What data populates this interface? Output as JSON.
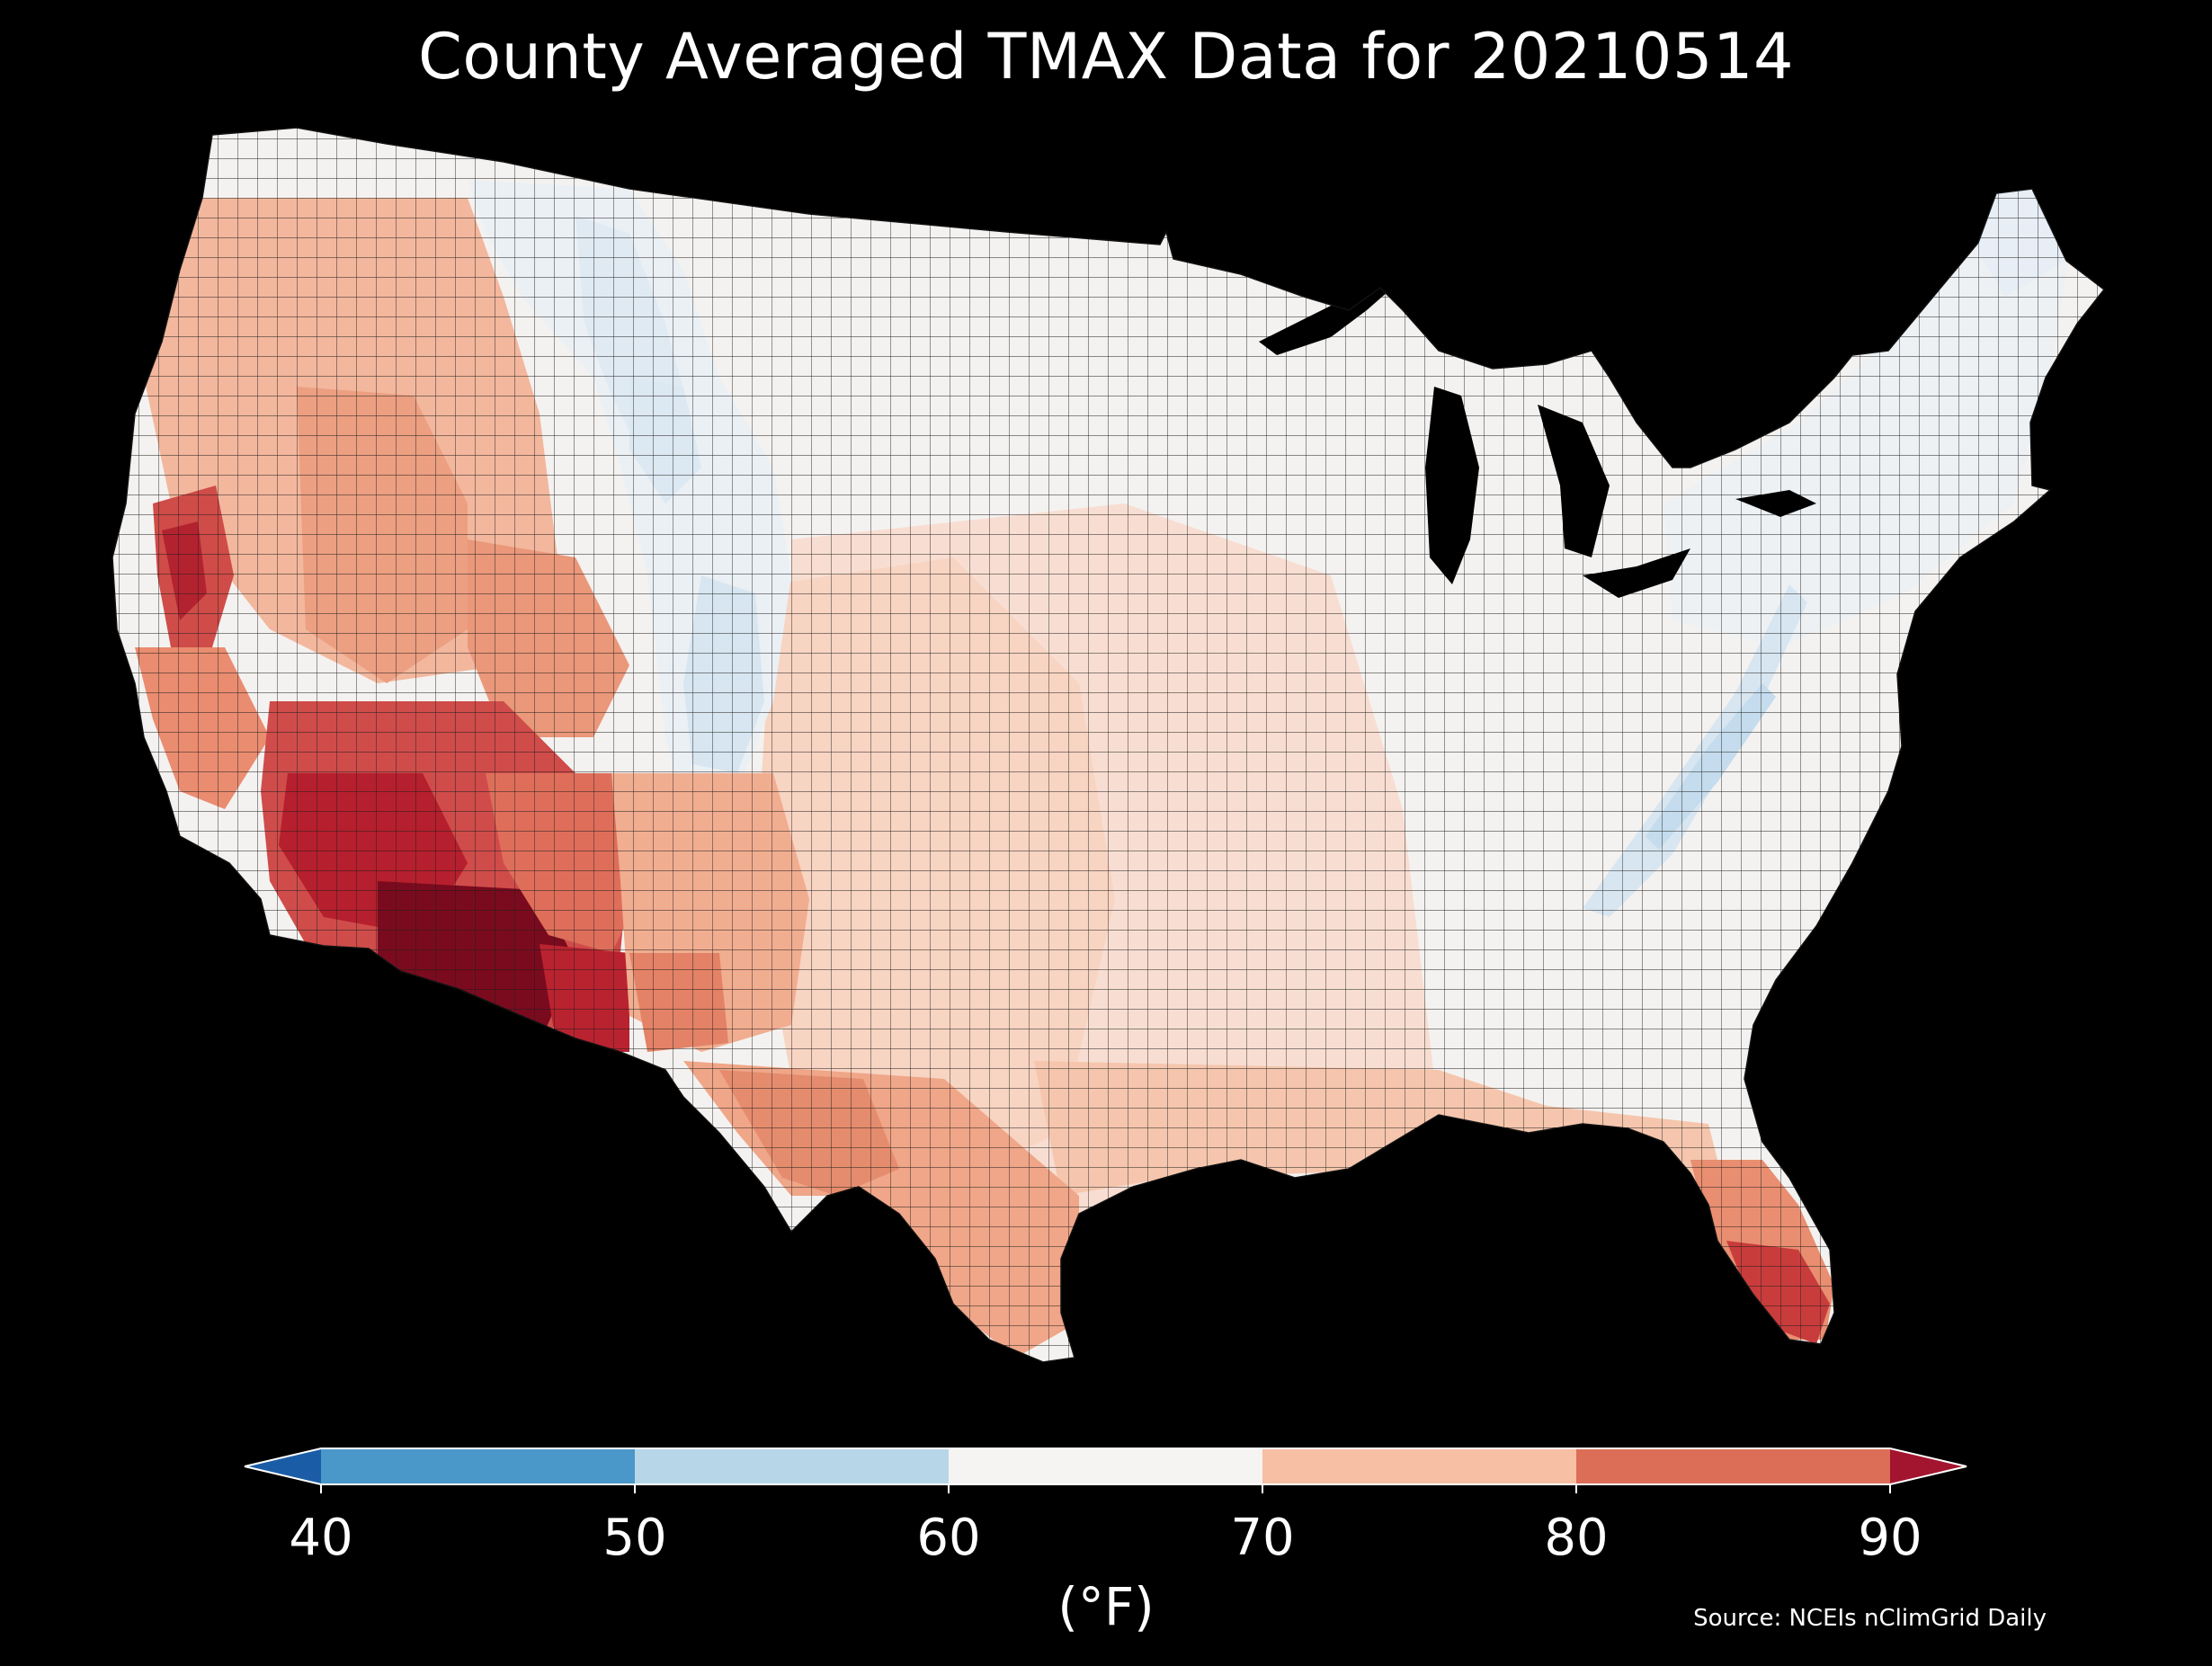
{
  "title": "County Averaged TMAX Data for 20210514",
  "colorbar": {
    "ticks": [
      "40",
      "50",
      "60",
      "70",
      "80",
      "90"
    ],
    "unit_label": "(°F)",
    "bins": [
      {
        "from": 40,
        "to": 50,
        "color": "#4a98c9"
      },
      {
        "from": 50,
        "to": 60,
        "color": "#b7d7e8"
      },
      {
        "from": 60,
        "to": 70,
        "color": "#f5f4f3"
      },
      {
        "from": 70,
        "to": 80,
        "color": "#f7bfa3"
      },
      {
        "from": 80,
        "to": 90,
        "color": "#dc6e57"
      }
    ],
    "extend_low_color": "#1a5da6",
    "extend_high_color": "#a3142e"
  },
  "source": "Source: NCEIs nClimGrid Daily",
  "map": {
    "region": "Contiguous United States, county level",
    "variable": "TMAX",
    "background_color": "#000000",
    "county_outline_color": "#222222"
  }
}
